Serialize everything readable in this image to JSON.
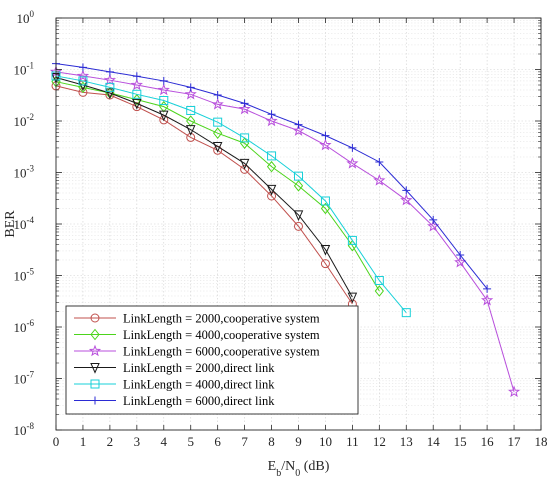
{
  "chart_data": {
    "type": "line",
    "title": "",
    "xlabel": {
      "main": "E",
      "sub": "b",
      "mid": "/N",
      "sub2": "0",
      "tail": " (dB)"
    },
    "ylabel": "BER",
    "x_scale": "linear",
    "y_scale": "log",
    "xlim": [
      0,
      18
    ],
    "ylim": [
      1e-08,
      1
    ],
    "x_ticks": [
      "0",
      "1",
      "2",
      "3",
      "4",
      "5",
      "6",
      "7",
      "8",
      "9",
      "10",
      "11",
      "12",
      "13",
      "14",
      "15",
      "16",
      "17",
      "18"
    ],
    "y_ticks": [
      {
        "base": "10",
        "exp": "-8"
      },
      {
        "base": "10",
        "exp": "-7"
      },
      {
        "base": "10",
        "exp": "-6"
      },
      {
        "base": "10",
        "exp": "-5"
      },
      {
        "base": "10",
        "exp": "-4"
      },
      {
        "base": "10",
        "exp": "-3"
      },
      {
        "base": "10",
        "exp": "-2"
      },
      {
        "base": "10",
        "exp": "-1"
      },
      {
        "base": "10",
        "exp": "0"
      }
    ],
    "grid": true,
    "minor_grid": true,
    "legend_position": "bottom-left",
    "series": [
      {
        "name": "LinkLength = 2000,cooperative system",
        "color": "#c0504d",
        "marker": "circle",
        "x": [
          0,
          1,
          2,
          3,
          4,
          5,
          6,
          7,
          8,
          9,
          10,
          11
        ],
        "y": [
          0.048,
          0.036,
          0.032,
          0.019,
          0.0105,
          0.0048,
          0.0027,
          0.00115,
          0.00035,
          9e-05,
          1.7e-05,
          2.8e-06
        ]
      },
      {
        "name": "LinkLength = 4000,cooperative system",
        "color": "#4cd41b",
        "marker": "diamond",
        "x": [
          0,
          1,
          2,
          3,
          4,
          5,
          6,
          7,
          8,
          9,
          10,
          11,
          12
        ],
        "y": [
          0.058,
          0.045,
          0.035,
          0.026,
          0.019,
          0.01,
          0.0058,
          0.0037,
          0.0013,
          0.00055,
          0.0002,
          3.8e-05,
          5e-06
        ]
      },
      {
        "name": "LinkLength = 6000,cooperative system",
        "color": "#b84fdc",
        "marker": "star",
        "x": [
          0,
          1,
          2,
          3,
          4,
          5,
          6,
          7,
          8,
          9,
          10,
          11,
          12,
          13,
          14,
          15,
          16,
          17
        ],
        "y": [
          0.09,
          0.075,
          0.062,
          0.05,
          0.04,
          0.033,
          0.021,
          0.017,
          0.01,
          0.0065,
          0.0034,
          0.0015,
          0.0007,
          0.00029,
          9e-05,
          1.8e-05,
          3.3e-06,
          5.5e-08
        ]
      },
      {
        "name": "LinkLength = 2000,direct link",
        "color": "#1a1a1a",
        "marker": "triangle-down",
        "x": [
          0,
          1,
          2,
          3,
          4,
          5,
          6,
          7,
          8,
          9,
          10,
          11
        ],
        "y": [
          0.07,
          0.05,
          0.035,
          0.022,
          0.013,
          0.0068,
          0.0032,
          0.0015,
          0.00047,
          0.00015,
          3.2e-05,
          3.8e-06
        ]
      },
      {
        "name": "LinkLength = 4000,direct link",
        "color": "#17d0d8",
        "marker": "square",
        "x": [
          0,
          1,
          2,
          3,
          4,
          5,
          6,
          7,
          8,
          9,
          10,
          11,
          12,
          13
        ],
        "y": [
          0.075,
          0.06,
          0.045,
          0.033,
          0.025,
          0.016,
          0.0095,
          0.0047,
          0.0021,
          0.00085,
          0.00028,
          4.8e-05,
          8e-06,
          1.9e-06
        ]
      },
      {
        "name": "LinkLength = 6000,direct link",
        "color": "#2b2bd4",
        "marker": "plus",
        "x": [
          0,
          1,
          2,
          3,
          4,
          5,
          6,
          7,
          8,
          9,
          10,
          11,
          12,
          13,
          14,
          15,
          16
        ],
        "y": [
          0.13,
          0.11,
          0.09,
          0.074,
          0.06,
          0.045,
          0.032,
          0.022,
          0.0135,
          0.0085,
          0.0052,
          0.003,
          0.0016,
          0.00045,
          0.00012,
          2.5e-05,
          5.5e-06
        ]
      }
    ]
  }
}
